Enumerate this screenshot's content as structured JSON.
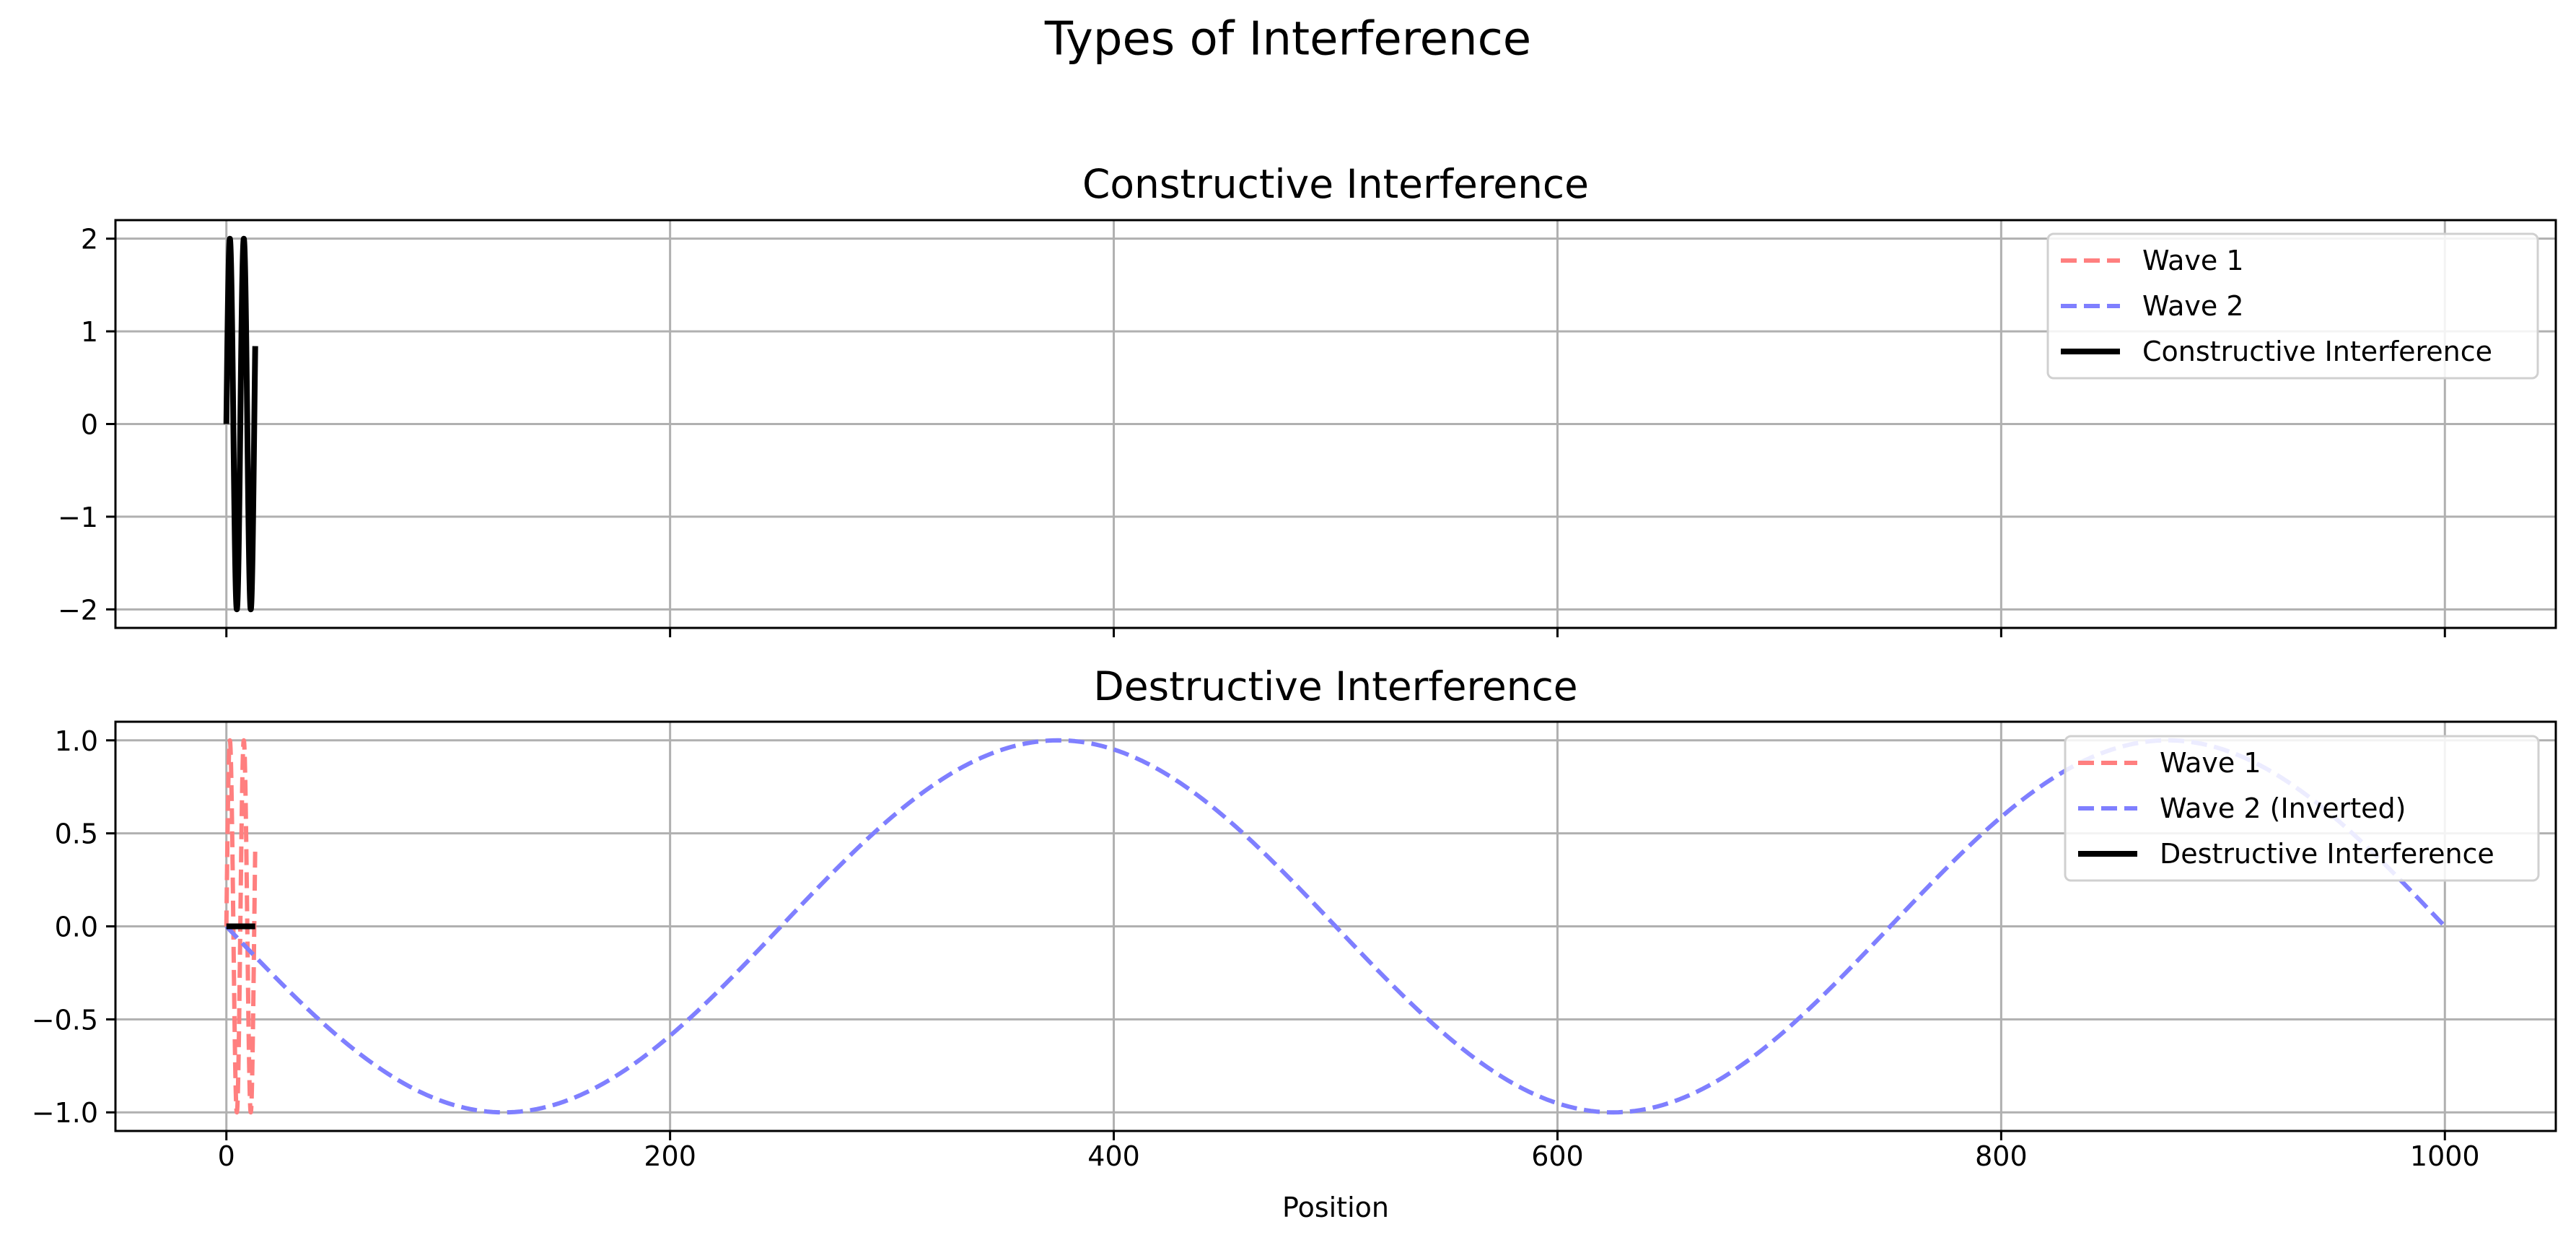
{
  "figure": {
    "title": "Types of Interference"
  },
  "chart_data": [
    {
      "type": "line",
      "title": "Constructive Interference",
      "xlabel": "",
      "ylabel": "",
      "xlim": [
        -50,
        1050
      ],
      "ylim": [
        -2.2,
        2.2
      ],
      "xticks": [
        0,
        200,
        400,
        600,
        800,
        1000
      ],
      "xtick_labels_shown": false,
      "yticks": [
        -2,
        -1,
        0,
        1,
        2
      ],
      "ytick_labels": [
        "−2",
        "−1",
        "0",
        "1",
        "2"
      ],
      "grid": true,
      "legend_position": "upper right",
      "series": [
        {
          "name": "Wave 1",
          "color": "#ff7f7f",
          "style": "dashed",
          "x_range": [
            0,
            13
          ],
          "points": 300,
          "expr": "sin"
        },
        {
          "name": "Wave 2",
          "color": "#7f7fff",
          "style": "dashed",
          "x_range": [
            0,
            13
          ],
          "points": 300,
          "expr": "sin"
        },
        {
          "name": "Constructive Interference",
          "color": "#000000",
          "style": "solid",
          "x_range": [
            0,
            13
          ],
          "points": 300,
          "expr": "2sin"
        }
      ]
    },
    {
      "type": "line",
      "title": "Destructive Interference",
      "xlabel": "Position",
      "ylabel": "",
      "xlim": [
        -50,
        1050
      ],
      "ylim": [
        -1.1,
        1.1
      ],
      "xticks": [
        0,
        200,
        400,
        600,
        800,
        1000
      ],
      "xtick_labels": [
        "0",
        "200",
        "400",
        "600",
        "800",
        "1000"
      ],
      "yticks": [
        -1.0,
        -0.5,
        0.0,
        0.5,
        1.0
      ],
      "ytick_labels": [
        "−1.0",
        "−0.5",
        "0.0",
        "0.5",
        "1.0"
      ],
      "grid": true,
      "legend_position": "upper right",
      "series": [
        {
          "name": "Wave 1",
          "color": "#ff7f7f",
          "style": "dashed",
          "x_range": [
            0,
            13
          ],
          "points": 300,
          "expr": "sin"
        },
        {
          "name": "Wave 2 (Inverted)",
          "color": "#7f7fff",
          "style": "dashed",
          "x_range": [
            0,
            1000
          ],
          "points": 400,
          "expr": "-sin(2πx/500)"
        },
        {
          "name": "Destructive Interference",
          "color": "#000000",
          "style": "solid",
          "x_range": [
            0,
            13
          ],
          "points": 50,
          "expr": "0"
        }
      ]
    }
  ]
}
